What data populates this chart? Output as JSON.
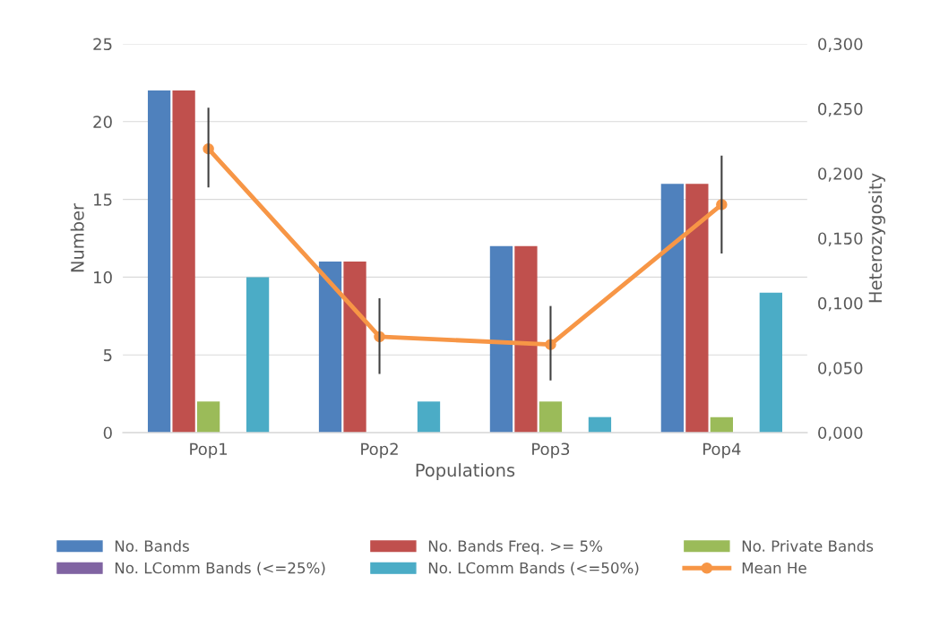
{
  "chart_data": {
    "type": "bar",
    "xlabel": "Populations",
    "ylabel": "Number",
    "y2label": "Heterozygosity",
    "categories": [
      "Pop1",
      "Pop2",
      "Pop3",
      "Pop4"
    ],
    "series": [
      {
        "name": "No. Bands",
        "color": "#4f81bd",
        "values": [
          22,
          11,
          12,
          16
        ]
      },
      {
        "name": "No. Bands Freq. >= 5%",
        "color": "#c0504d",
        "values": [
          22,
          11,
          12,
          16
        ]
      },
      {
        "name": "No. Private Bands",
        "color": "#9bbb59",
        "values": [
          2,
          0,
          2,
          1
        ]
      },
      {
        "name": "No. LComm Bands (<=25%)",
        "color": "#8064a2",
        "values": [
          0,
          0,
          0,
          0
        ]
      },
      {
        "name": "No. LComm Bands (<=50%)",
        "color": "#4bacc6",
        "values": [
          10,
          2,
          1,
          9
        ]
      },
      {
        "name": "Mean He",
        "type": "line",
        "axis": "y2",
        "color": "#f79646",
        "marker": "circle",
        "values": [
          0.219,
          0.074,
          0.068,
          0.176
        ],
        "errors": [
          [
            0.19,
            0.25
          ],
          [
            0.046,
            0.103
          ],
          [
            0.041,
            0.097
          ],
          [
            0.139,
            0.213
          ]
        ]
      }
    ],
    "ylim": [
      0,
      25
    ],
    "yticks": [
      0,
      5,
      10,
      15,
      20,
      25
    ],
    "y2lim": [
      0,
      0.3
    ],
    "y2ticks": [
      {
        "value": 0,
        "label": "0,000"
      },
      {
        "value": 0.05,
        "label": "0,050"
      },
      {
        "value": 0.1,
        "label": "0,100"
      },
      {
        "value": 0.15,
        "label": "0,150"
      },
      {
        "value": 0.2,
        "label": "0,200"
      },
      {
        "value": 0.25,
        "label": "0,250"
      },
      {
        "value": 0.3,
        "label": "0,300"
      }
    ],
    "grid": "y",
    "legend": "bottom"
  }
}
